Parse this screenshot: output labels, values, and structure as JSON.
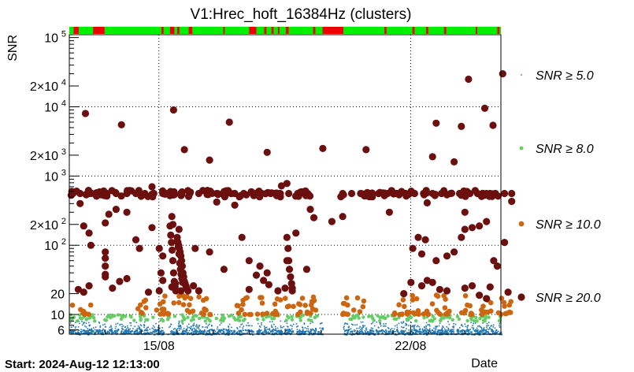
{
  "chart_data": {
    "type": "scatter",
    "title": "V1:Hrec_hoft_16384Hz (clusters)",
    "ylabel": "SNR",
    "xlabel": "Date",
    "footer": "Start: 2024-Aug-12 12:13:00",
    "y_scale": "log",
    "ylim": [
      5.2,
      110000
    ],
    "xlim": [
      "2024-08-12 12:13",
      "2024-08-24 12:13"
    ],
    "x_ticks": [
      {
        "label": "15/08",
        "date": "2024-08-15 00:00"
      },
      {
        "label": "22/08",
        "date": "2024-08-22 00:00"
      }
    ],
    "y_ticks": [
      {
        "value": 6,
        "label": "6"
      },
      {
        "value": 10,
        "label": "10"
      },
      {
        "value": 20,
        "label": "20"
      },
      {
        "value": 100,
        "label": "10",
        "exp": "2"
      },
      {
        "value": 200,
        "label": "2×10",
        "exp": "2"
      },
      {
        "value": 1000,
        "label": "10",
        "exp": "3"
      },
      {
        "value": 2000,
        "label": "2×10",
        "exp": "3"
      },
      {
        "value": 10000,
        "label": "10",
        "exp": "4"
      },
      {
        "value": 20000,
        "label": "2×10",
        "exp": "4"
      },
      {
        "value": 100000,
        "label": "10",
        "exp": "5"
      }
    ],
    "grid": true,
    "legend_position": "right",
    "series": [
      {
        "name": "SNR ≥ 5.0",
        "color": "#1f77b4",
        "marker": "dot"
      },
      {
        "name": "SNR ≥ 8.0",
        "color": "#66cc66",
        "marker": "small-circle"
      },
      {
        "name": "SNR ≥ 10.0",
        "color": "#cc6611",
        "marker": "circle"
      },
      {
        "name": "SNR ≥ 20.0",
        "color": "#6b0f0f",
        "marker": "large-circle"
      }
    ],
    "state_bar": {
      "colors": {
        "ok": "#00ee00",
        "bad": "#ee0000"
      },
      "bad_segments_days": [
        [
          0.12,
          0.26
        ],
        [
          0.66,
          0.98
        ],
        [
          2.56,
          2.62
        ],
        [
          2.8,
          2.92
        ],
        [
          3.0,
          3.06
        ],
        [
          3.32,
          3.42
        ],
        [
          4.28,
          4.32
        ],
        [
          5.0,
          5.2
        ],
        [
          5.42,
          5.48
        ],
        [
          5.62,
          5.68
        ],
        [
          5.8,
          5.84
        ],
        [
          6.02,
          6.1
        ],
        [
          6.78,
          6.84
        ],
        [
          7.04,
          7.62
        ],
        [
          8.76,
          8.82
        ],
        [
          9.54,
          9.6
        ],
        [
          9.92,
          9.98
        ],
        [
          10.42,
          10.48
        ],
        [
          11.3,
          11.34
        ],
        [
          11.9,
          11.96
        ]
      ]
    },
    "high_snr_points": [
      [
        0.45,
        8000
      ],
      [
        1.45,
        5500
      ],
      [
        2.9,
        9000
      ],
      [
        3.2,
        2400
      ],
      [
        3.9,
        1700
      ],
      [
        4.45,
        6000
      ],
      [
        5.5,
        2200
      ],
      [
        7.05,
        2500
      ],
      [
        8.25,
        2400
      ],
      [
        10.1,
        1900
      ],
      [
        10.2,
        5800
      ],
      [
        10.7,
        1600
      ],
      [
        10.9,
        5200
      ],
      [
        11.1,
        25000
      ],
      [
        11.55,
        9500
      ],
      [
        11.78,
        5400
      ],
      [
        12.05,
        30000
      ],
      [
        0.1,
        560
      ],
      [
        0.3,
        560
      ],
      [
        0.55,
        560
      ],
      [
        0.8,
        560
      ],
      [
        1.05,
        560
      ],
      [
        1.3,
        560
      ],
      [
        1.6,
        560
      ],
      [
        1.85,
        560
      ],
      [
        2.1,
        560
      ],
      [
        2.35,
        560
      ],
      [
        2.6,
        560
      ],
      [
        2.85,
        560
      ],
      [
        3.1,
        560
      ],
      [
        3.35,
        560
      ],
      [
        3.6,
        560
      ],
      [
        3.85,
        560
      ],
      [
        4.1,
        560
      ],
      [
        4.35,
        560
      ],
      [
        4.6,
        560
      ],
      [
        4.85,
        560
      ],
      [
        5.1,
        560
      ],
      [
        5.35,
        560
      ],
      [
        5.6,
        560
      ],
      [
        5.85,
        560
      ],
      [
        6.1,
        560
      ],
      [
        6.35,
        560
      ],
      [
        6.6,
        560
      ],
      [
        7.6,
        560
      ],
      [
        7.85,
        560
      ],
      [
        8.1,
        560
      ],
      [
        8.35,
        560
      ],
      [
        8.6,
        560
      ],
      [
        8.85,
        560
      ],
      [
        9.1,
        560
      ],
      [
        9.35,
        560
      ],
      [
        9.6,
        560
      ],
      [
        9.85,
        560
      ],
      [
        10.1,
        560
      ],
      [
        10.35,
        560
      ],
      [
        10.6,
        560
      ],
      [
        10.85,
        560
      ],
      [
        11.1,
        560
      ],
      [
        11.35,
        560
      ],
      [
        11.6,
        560
      ],
      [
        11.85,
        560
      ],
      [
        12.1,
        560
      ],
      [
        12.3,
        560
      ],
      [
        2.3,
        700
      ],
      [
        5.9,
        720
      ],
      [
        6.05,
        780
      ],
      [
        4.1,
        420
      ],
      [
        4.6,
        380
      ],
      [
        6.7,
        330
      ],
      [
        6.8,
        250
      ],
      [
        7.6,
        260
      ],
      [
        8.9,
        300
      ],
      [
        9.95,
        410
      ],
      [
        11.0,
        300
      ],
      [
        12.3,
        430
      ],
      [
        0.3,
        400
      ],
      [
        0.4,
        190
      ],
      [
        0.55,
        150
      ],
      [
        0.6,
        100
      ],
      [
        1.1,
        280
      ],
      [
        1.0,
        210
      ],
      [
        1.3,
        330
      ],
      [
        1.6,
        300
      ],
      [
        1.85,
        120
      ],
      [
        1.95,
        90
      ],
      [
        2.3,
        180
      ],
      [
        2.5,
        90
      ],
      [
        2.6,
        70
      ],
      [
        2.85,
        260
      ],
      [
        2.88,
        200
      ],
      [
        3.05,
        170
      ],
      [
        3.5,
        90
      ],
      [
        3.9,
        80
      ],
      [
        4.3,
        45
      ],
      [
        4.8,
        130
      ],
      [
        5.0,
        60
      ],
      [
        5.3,
        50
      ],
      [
        5.5,
        40
      ],
      [
        6.05,
        60
      ],
      [
        6.3,
        150
      ],
      [
        6.6,
        45
      ],
      [
        7.3,
        220
      ],
      [
        9.55,
        90
      ],
      [
        9.7,
        130
      ],
      [
        9.8,
        75
      ],
      [
        9.9,
        120
      ],
      [
        10.2,
        60
      ],
      [
        10.5,
        70
      ],
      [
        10.7,
        80
      ],
      [
        10.9,
        130
      ],
      [
        11.0,
        170
      ],
      [
        11.2,
        180
      ],
      [
        11.4,
        190
      ],
      [
        11.6,
        220
      ],
      [
        11.7,
        25
      ],
      [
        11.8,
        60
      ],
      [
        11.9,
        50
      ],
      [
        12.1,
        110
      ],
      [
        0.25,
        23
      ],
      [
        0.4,
        21
      ],
      [
        0.55,
        26
      ],
      [
        1.0,
        35
      ],
      [
        1.2,
        24
      ],
      [
        1.4,
        30
      ],
      [
        1.6,
        33
      ],
      [
        2.2,
        21
      ],
      [
        2.5,
        22
      ],
      [
        2.85,
        25
      ],
      [
        2.95,
        28
      ],
      [
        3.1,
        22
      ],
      [
        3.3,
        22
      ],
      [
        3.45,
        26
      ],
      [
        3.6,
        22
      ],
      [
        5.0,
        23
      ],
      [
        5.2,
        37
      ],
      [
        5.4,
        31
      ],
      [
        5.55,
        27
      ],
      [
        5.8,
        22
      ],
      [
        6.0,
        24
      ],
      [
        6.2,
        24
      ],
      [
        9.3,
        20
      ],
      [
        9.5,
        29
      ],
      [
        9.8,
        26
      ],
      [
        9.95,
        31
      ],
      [
        10.1,
        29
      ],
      [
        10.3,
        23
      ],
      [
        10.5,
        22
      ],
      [
        11.0,
        24
      ],
      [
        11.2,
        26
      ],
      [
        11.4,
        19
      ],
      [
        11.6,
        17
      ],
      [
        12.2,
        21
      ],
      [
        1.0,
        80
      ],
      [
        1.0,
        65
      ],
      [
        1.0,
        50
      ],
      [
        1.0,
        38
      ],
      [
        2.55,
        40
      ],
      [
        2.6,
        31
      ],
      [
        2.8,
        190
      ],
      [
        2.82,
        140
      ],
      [
        2.84,
        110
      ],
      [
        2.86,
        85
      ],
      [
        2.88,
        60
      ],
      [
        2.9,
        40
      ],
      [
        2.92,
        30
      ],
      [
        2.94,
        25
      ],
      [
        2.96,
        22
      ],
      [
        3.0,
        130
      ],
      [
        3.02,
        110
      ],
      [
        3.04,
        100
      ],
      [
        3.06,
        90
      ],
      [
        3.08,
        80
      ],
      [
        3.1,
        70
      ],
      [
        3.12,
        60
      ],
      [
        3.14,
        50
      ],
      [
        3.16,
        40
      ],
      [
        3.18,
        35
      ],
      [
        3.2,
        30
      ],
      [
        3.22,
        28
      ],
      [
        3.24,
        26
      ],
      [
        3.26,
        24
      ],
      [
        3.0,
        115
      ],
      [
        3.03,
        95
      ],
      [
        3.05,
        75
      ],
      [
        3.07,
        55
      ],
      [
        3.09,
        45
      ],
      [
        3.11,
        38
      ],
      [
        3.13,
        33
      ],
      [
        3.15,
        29
      ],
      [
        6.05,
        130
      ],
      [
        6.08,
        90
      ],
      [
        6.1,
        60
      ],
      [
        6.12,
        45
      ],
      [
        6.15,
        35
      ],
      [
        6.18,
        28
      ],
      [
        6.2,
        22
      ]
    ]
  }
}
